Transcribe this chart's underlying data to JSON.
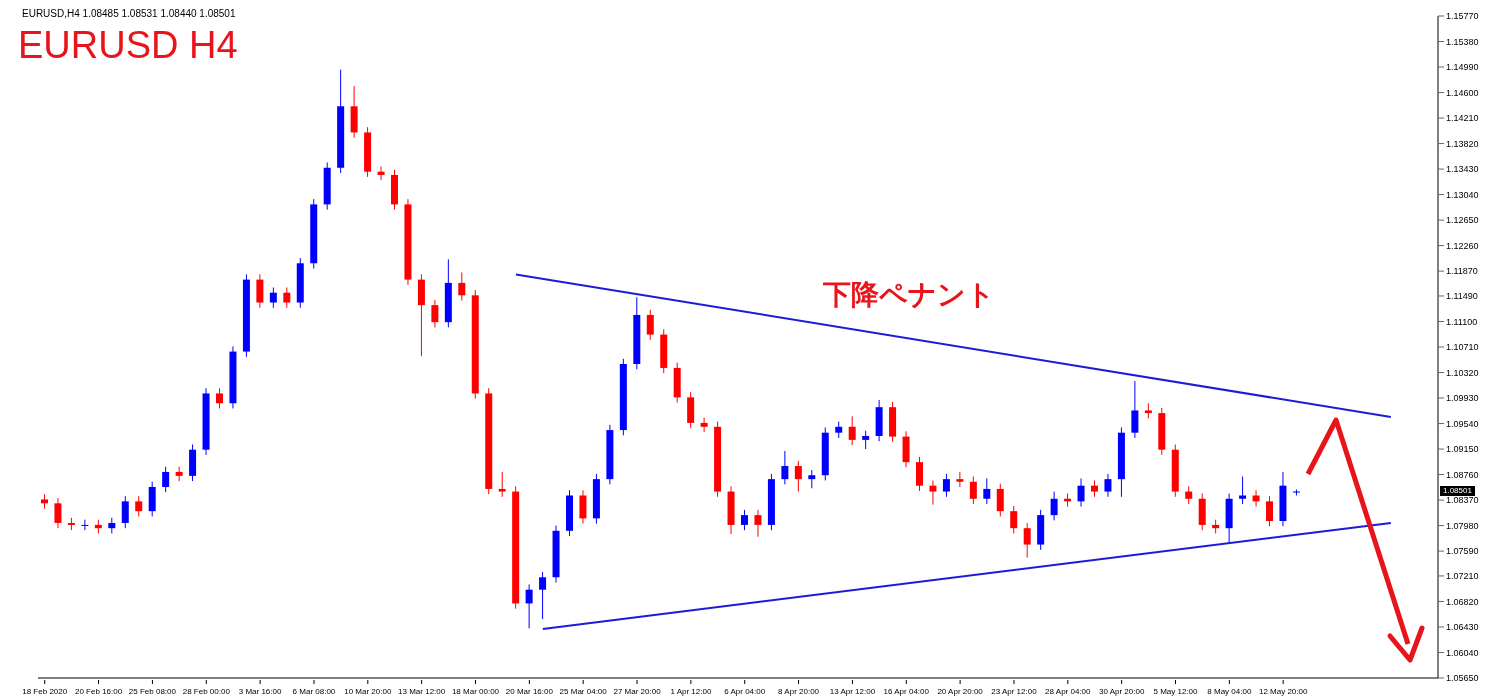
{
  "chart_data": {
    "type": "candlestick",
    "title": "EURUSD H4",
    "subtitle": "EURUSD,H4  1.08485 1.08531 1.08440 1.08501",
    "annotations": [
      "下降ペナント",
      "1.08501"
    ],
    "categories": [
      "18 Feb 2020",
      null,
      null,
      null,
      "20 Feb 16:00",
      null,
      null,
      null,
      "25 Feb 08:00",
      null,
      null,
      null,
      "28 Feb 00:00",
      null,
      null,
      null,
      "3 Mar 16:00",
      null,
      null,
      null,
      "6 Mar 08:00",
      null,
      null,
      null,
      "10 Mar 20:00",
      null,
      null,
      null,
      "13 Mar 12:00",
      null,
      null,
      null,
      "18 Mar 00:00",
      null,
      null,
      null,
      "20 Mar 16:00",
      null,
      null,
      null,
      "25 Mar 04:00",
      null,
      null,
      null,
      "27 Mar 20:00",
      null,
      null,
      null,
      "1 Apr 12:00",
      null,
      null,
      null,
      "6 Apr 04:00",
      null,
      null,
      null,
      "8 Apr 20:00",
      null,
      null,
      null,
      "13 Apr 12:00",
      null,
      null,
      null,
      "16 Apr 04:00",
      null,
      null,
      null,
      "20 Apr 20:00",
      null,
      null,
      null,
      "23 Apr 12:00",
      null,
      null,
      null,
      "28 Apr 04:00",
      null,
      null,
      null,
      "30 Apr 20:00",
      null,
      null,
      null,
      "5 May 12:00",
      null,
      null,
      null,
      "8 May 04:00",
      null,
      null,
      null,
      "12 May 20:00",
      null,
      null,
      null,
      null,
      null,
      null,
      null,
      null,
      null,
      null,
      null
    ],
    "ohlc": [
      [
        1.0838,
        1.0846,
        1.0824,
        1.0832
      ],
      [
        1.0832,
        1.084,
        1.0794,
        1.0802
      ],
      [
        1.0802,
        1.081,
        1.0791,
        1.0799
      ],
      [
        1.0799,
        1.0807,
        1.0791,
        1.0799
      ],
      [
        1.0799,
        1.0807,
        1.0786,
        1.0794
      ],
      [
        1.0794,
        1.081,
        1.0786,
        1.0802
      ],
      [
        1.0802,
        1.0843,
        1.0794,
        1.0835
      ],
      [
        1.0835,
        1.0843,
        1.0812,
        1.082
      ],
      [
        1.082,
        1.0865,
        1.0812,
        1.0857
      ],
      [
        1.0857,
        1.0888,
        1.0849,
        1.088
      ],
      [
        1.088,
        1.0888,
        1.0866,
        1.0874
      ],
      [
        1.0874,
        1.0922,
        1.0866,
        1.0914
      ],
      [
        1.0914,
        1.1008,
        1.0906,
        1.1
      ],
      [
        1.1,
        1.1008,
        1.0977,
        1.0985
      ],
      [
        1.0985,
        1.1072,
        1.0977,
        1.1064
      ],
      [
        1.1064,
        1.1182,
        1.1056,
        1.1174
      ],
      [
        1.1174,
        1.1182,
        1.1131,
        1.1139
      ],
      [
        1.1139,
        1.1162,
        1.1131,
        1.1154
      ],
      [
        1.1154,
        1.1162,
        1.1131,
        1.1139
      ],
      [
        1.1139,
        1.1207,
        1.1131,
        1.1199
      ],
      [
        1.1199,
        1.1297,
        1.1191,
        1.1289
      ],
      [
        1.1289,
        1.1353,
        1.1281,
        1.1345
      ],
      [
        1.1345,
        1.1495,
        1.1337,
        1.1439
      ],
      [
        1.1439,
        1.147,
        1.1391,
        1.1399
      ],
      [
        1.1399,
        1.1407,
        1.1331,
        1.1339
      ],
      [
        1.1339,
        1.1347,
        1.1326,
        1.1334
      ],
      [
        1.1334,
        1.1342,
        1.1281,
        1.1289
      ],
      [
        1.1289,
        1.1297,
        1.1166,
        1.1174
      ],
      [
        1.1174,
        1.1182,
        1.1057,
        1.1135
      ],
      [
        1.1135,
        1.1143,
        1.1101,
        1.1109
      ],
      [
        1.1109,
        1.1205,
        1.1101,
        1.1169
      ],
      [
        1.1169,
        1.1185,
        1.1142,
        1.115
      ],
      [
        1.115,
        1.1158,
        1.0992,
        1.1
      ],
      [
        1.1,
        1.1008,
        1.0846,
        1.0854
      ],
      [
        1.0854,
        1.088,
        1.0842,
        1.085
      ],
      [
        1.085,
        1.0858,
        1.0671,
        1.0679
      ],
      [
        1.0679,
        1.0708,
        1.0641,
        1.07
      ],
      [
        1.07,
        1.0727,
        1.0655,
        1.0719
      ],
      [
        1.0719,
        1.0798,
        1.0711,
        1.079
      ],
      [
        1.079,
        1.0852,
        1.0782,
        1.0844
      ],
      [
        1.0844,
        1.0852,
        1.0801,
        1.0809
      ],
      [
        1.0809,
        1.0877,
        1.0801,
        1.0869
      ],
      [
        1.0869,
        1.0952,
        1.0861,
        1.0944
      ],
      [
        1.0944,
        1.1053,
        1.0936,
        1.1045
      ],
      [
        1.1045,
        1.1147,
        1.1037,
        1.112
      ],
      [
        1.112,
        1.1128,
        1.1082,
        1.109
      ],
      [
        1.109,
        1.1098,
        1.1031,
        1.1039
      ],
      [
        1.1039,
        1.1047,
        1.0986,
        1.0994
      ],
      [
        1.0994,
        1.1002,
        1.0947,
        1.0955
      ],
      [
        1.0955,
        1.0963,
        1.0941,
        1.0949
      ],
      [
        1.0949,
        1.0957,
        1.0842,
        1.085
      ],
      [
        1.085,
        1.0858,
        1.0785,
        1.0799
      ],
      [
        1.0799,
        1.0822,
        1.0791,
        1.0814
      ],
      [
        1.0814,
        1.0822,
        1.0781,
        1.0799
      ],
      [
        1.0799,
        1.0877,
        1.0791,
        1.0869
      ],
      [
        1.0869,
        1.0912,
        1.0861,
        1.0889
      ],
      [
        1.0889,
        1.0897,
        1.085,
        1.0869
      ],
      [
        1.0869,
        1.0883,
        1.0855,
        1.0875
      ],
      [
        1.0875,
        1.0948,
        1.0867,
        1.094
      ],
      [
        1.094,
        1.0957,
        1.0932,
        1.0949
      ],
      [
        1.0949,
        1.0965,
        1.0921,
        1.0929
      ],
      [
        1.0929,
        1.0943,
        1.0915,
        1.0935
      ],
      [
        1.0935,
        1.099,
        1.0927,
        1.0979
      ],
      [
        1.0979,
        1.0987,
        1.0926,
        1.0934
      ],
      [
        1.0934,
        1.0942,
        1.0887,
        1.0895
      ],
      [
        1.0895,
        1.0903,
        1.0851,
        1.0859
      ],
      [
        1.0859,
        1.0867,
        1.083,
        1.085
      ],
      [
        1.085,
        1.0877,
        1.0842,
        1.0869
      ],
      [
        1.0869,
        1.088,
        1.0857,
        1.0865
      ],
      [
        1.0865,
        1.0873,
        1.0831,
        1.0839
      ],
      [
        1.0839,
        1.087,
        1.0831,
        1.0854
      ],
      [
        1.0854,
        1.0862,
        1.0812,
        1.082
      ],
      [
        1.082,
        1.0828,
        1.0786,
        1.0794
      ],
      [
        1.0794,
        1.0802,
        1.0749,
        1.0769
      ],
      [
        1.0769,
        1.0822,
        1.0761,
        1.0814
      ],
      [
        1.0814,
        1.085,
        1.0806,
        1.0839
      ],
      [
        1.0839,
        1.0847,
        1.0827,
        1.0835
      ],
      [
        1.0835,
        1.087,
        1.0827,
        1.0859
      ],
      [
        1.0859,
        1.0867,
        1.0842,
        1.085
      ],
      [
        1.085,
        1.0877,
        1.0842,
        1.0869
      ],
      [
        1.0869,
        1.0948,
        1.0842,
        1.094
      ],
      [
        1.094,
        1.1019,
        1.0932,
        1.0974
      ],
      [
        1.0974,
        1.0985,
        1.0962,
        1.097
      ],
      [
        1.097,
        1.0978,
        1.0906,
        1.0914
      ],
      [
        1.0914,
        1.0922,
        1.0842,
        1.085
      ],
      [
        1.085,
        1.0858,
        1.0831,
        1.0839
      ],
      [
        1.0839,
        1.0847,
        1.0791,
        1.0799
      ],
      [
        1.0799,
        1.0807,
        1.0786,
        1.0794
      ],
      [
        1.0794,
        1.0847,
        1.0771,
        1.0839
      ],
      [
        1.0839,
        1.0873,
        1.0831,
        1.0844
      ],
      [
        1.0844,
        1.0852,
        1.0827,
        1.0835
      ],
      [
        1.0835,
        1.0843,
        1.0797,
        1.0805
      ],
      [
        1.0805,
        1.088,
        1.0797,
        1.0859
      ],
      [
        1.08485,
        1.08531,
        1.0844,
        1.08501
      ],
      null,
      null,
      null,
      null,
      null,
      null,
      null,
      null,
      null,
      null
    ],
    "colors": [
      "#ff0000",
      "#ff0000",
      "#ff0000",
      "#0000ff",
      "#ff0000",
      "#0000ff",
      "#0000ff",
      "#ff0000",
      "#0000ff",
      "#0000ff",
      "#ff0000",
      "#0000ff",
      "#0000ff",
      "#ff0000",
      "#0000ff",
      "#0000ff",
      "#ff0000",
      "#0000ff",
      "#ff0000",
      "#0000ff",
      "#0000ff",
      "#0000ff",
      "#0000ff",
      "#ff0000",
      "#ff0000",
      "#ff0000",
      "#ff0000",
      "#ff0000",
      "#ff0000",
      "#ff0000",
      "#0000ff",
      "#ff0000",
      "#ff0000",
      "#ff0000",
      "#ff0000",
      "#ff0000",
      "#0000ff",
      "#0000ff",
      "#0000ff",
      "#0000ff",
      "#ff0000",
      "#0000ff",
      "#0000ff",
      "#0000ff",
      "#0000ff",
      "#ff0000",
      "#ff0000",
      "#ff0000",
      "#ff0000",
      "#ff0000",
      "#ff0000",
      "#ff0000",
      "#0000ff",
      "#ff0000",
      "#0000ff",
      "#0000ff",
      "#ff0000",
      "#0000ff",
      "#0000ff",
      "#0000ff",
      "#ff0000",
      "#0000ff",
      "#0000ff",
      "#ff0000",
      "#ff0000",
      "#ff0000",
      "#ff0000",
      "#0000ff",
      "#ff0000",
      "#ff0000",
      "#0000ff",
      "#ff0000",
      "#ff0000",
      "#ff0000",
      "#0000ff",
      "#0000ff",
      "#ff0000",
      "#0000ff",
      "#ff0000",
      "#0000ff",
      "#0000ff",
      "#0000ff",
      "#ff0000",
      "#ff0000",
      "#ff0000",
      "#ff0000",
      "#ff0000",
      "#ff0000",
      "#0000ff",
      "#0000ff",
      "#ff0000",
      "#ff0000",
      "#0000ff",
      "#0000ff",
      null,
      null,
      null,
      null,
      null,
      null,
      null,
      null,
      null,
      null
    ],
    "series": [
      {
        "type": "line",
        "color": "#1c1cd8",
        "values": [
          null,
          null,
          null,
          null,
          null,
          null,
          null,
          null,
          null,
          null,
          null,
          null,
          null,
          null,
          null,
          null,
          null,
          null,
          null,
          null,
          null,
          null,
          null,
          null,
          null,
          null,
          null,
          null,
          null,
          null,
          null,
          null,
          null,
          null,
          null,
          1.1182,
          null,
          null,
          null,
          null,
          null,
          null,
          null,
          null,
          null,
          null,
          null,
          null,
          null,
          null,
          null,
          null,
          null,
          null,
          null,
          null,
          null,
          null,
          null,
          null,
          null,
          null,
          null,
          null,
          null,
          null,
          null,
          null,
          null,
          null,
          null,
          null,
          null,
          null,
          null,
          null,
          null,
          null,
          null,
          null,
          null,
          null,
          null,
          null,
          null,
          null,
          null,
          null,
          null,
          null,
          null,
          null,
          null,
          null,
          null,
          null,
          null,
          null,
          null,
          null,
          1.0964,
          null,
          null,
          null
        ]
      },
      {
        "type": "line",
        "color": "#1c1cd8",
        "values": [
          null,
          null,
          null,
          null,
          null,
          null,
          null,
          null,
          null,
          null,
          null,
          null,
          null,
          null,
          null,
          null,
          null,
          null,
          null,
          null,
          null,
          null,
          null,
          null,
          null,
          null,
          null,
          null,
          null,
          null,
          null,
          null,
          null,
          null,
          null,
          null,
          null,
          1.064,
          null,
          null,
          null,
          null,
          null,
          null,
          null,
          null,
          null,
          null,
          null,
          null,
          null,
          null,
          null,
          null,
          null,
          null,
          null,
          null,
          null,
          null,
          null,
          null,
          null,
          null,
          null,
          null,
          null,
          null,
          null,
          null,
          null,
          null,
          null,
          null,
          null,
          null,
          null,
          null,
          null,
          null,
          null,
          null,
          null,
          null,
          null,
          null,
          null,
          null,
          null,
          null,
          null,
          null,
          null,
          null,
          null,
          null,
          null,
          null,
          null,
          null,
          1.0802,
          null,
          null,
          null
        ]
      }
    ],
    "ylim": [
      1.0565,
      1.1577
    ],
    "yticks": [
      {
        "value": 1.0565,
        "label": "1.05650"
      },
      {
        "value": 1.0604,
        "label": "1.06040"
      },
      {
        "value": 1.0643,
        "label": "1.06430"
      },
      {
        "value": 1.0682,
        "label": "1.06820"
      },
      {
        "value": 1.0721,
        "label": "1.07210"
      },
      {
        "value": 1.0759,
        "label": "1.07590"
      },
      {
        "value": 1.0798,
        "label": "1.07980"
      },
      {
        "value": 1.0837,
        "label": "1.08370"
      },
      {
        "value": 1.0876,
        "label": "1.08760"
      },
      {
        "value": 1.0915,
        "label": "1.09150"
      },
      {
        "value": 1.0954,
        "label": "1.09540"
      },
      {
        "value": 1.0993,
        "label": "1.09930"
      },
      {
        "value": 1.1032,
        "label": "1.10320"
      },
      {
        "value": 1.1071,
        "label": "1.10710"
      },
      {
        "value": 1.111,
        "label": "1.11100"
      },
      {
        "value": 1.1149,
        "label": "1.11490"
      },
      {
        "value": 1.1187,
        "label": "1.11870"
      },
      {
        "value": 1.1226,
        "label": "1.12260"
      },
      {
        "value": 1.1265,
        "label": "1.12650"
      },
      {
        "value": 1.1304,
        "label": "1.13040"
      },
      {
        "value": 1.1343,
        "label": "1.13430"
      },
      {
        "value": 1.1382,
        "label": "1.13820"
      },
      {
        "value": 1.1421,
        "label": "1.14210"
      },
      {
        "value": 1.146,
        "label": "1.14600"
      },
      {
        "value": 1.1499,
        "label": "1.14990"
      },
      {
        "value": 1.1538,
        "label": "1.15380"
      },
      {
        "value": 1.1577,
        "label": "1.15770"
      }
    ]
  }
}
